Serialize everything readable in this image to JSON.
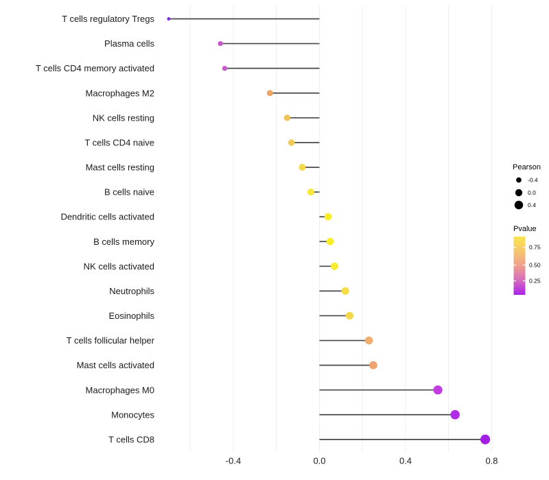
{
  "chart_data": {
    "type": "lollipop",
    "orientation": "horizontal",
    "title": "",
    "xlabel": "",
    "ylabel": "",
    "xlim": [
      -0.78,
      0.85
    ],
    "x_tick_values": [
      -0.4,
      0.0,
      0.4,
      0.8
    ],
    "x_tick_labels": [
      "-0.4",
      "0.0",
      "0.4",
      "0.8"
    ],
    "x_gridline_values": [
      -0.6,
      -0.4,
      -0.2,
      0.0,
      0.2,
      0.4,
      0.6,
      0.8
    ],
    "grid": "vertical-only",
    "categories": [
      "T cells regulatory  Tregs",
      "Plasma cells",
      "T cells CD4 memory activated",
      "Macrophages M2",
      "NK cells resting",
      "T cells CD4 naive",
      "Mast cells resting",
      "B cells naive",
      "Dendritic cells activated",
      "B cells memory",
      "NK cells activated",
      "Neutrophils",
      "Eosinophils",
      "T cells follicular helper",
      "Mast cells activated",
      "Macrophages M0",
      "Monocytes",
      "T cells CD8"
    ],
    "points": [
      {
        "label": "T cells regulatory  Tregs",
        "pearson": -0.7,
        "pvalue_approx": 0.03,
        "color": "#812CE2"
      },
      {
        "label": "Plasma cells",
        "pearson": -0.46,
        "pvalue_approx": 0.28,
        "color": "#C455CB"
      },
      {
        "label": "T cells CD4 memory activated",
        "pearson": -0.44,
        "pvalue_approx": 0.3,
        "color": "#C55CC8"
      },
      {
        "label": "Macrophages M2",
        "pearson": -0.23,
        "pvalue_approx": 0.55,
        "color": "#EDA55F"
      },
      {
        "label": "NK cells resting",
        "pearson": -0.15,
        "pvalue_approx": 0.66,
        "color": "#F0C35A"
      },
      {
        "label": "T cells CD4 naive",
        "pearson": -0.13,
        "pvalue_approx": 0.68,
        "color": "#F0CA5B"
      },
      {
        "label": "Mast cells resting",
        "pearson": -0.08,
        "pvalue_approx": 0.73,
        "color": "#F3D74D"
      },
      {
        "label": "B cells naive",
        "pearson": -0.04,
        "pvalue_approx": 0.82,
        "color": "#F7E93B"
      },
      {
        "label": "Dendritic cells activated",
        "pearson": 0.04,
        "pvalue_approx": 0.88,
        "color": "#F8EE27"
      },
      {
        "label": "B cells memory",
        "pearson": 0.05,
        "pvalue_approx": 0.88,
        "color": "#F9EE26"
      },
      {
        "label": "NK cells activated",
        "pearson": 0.07,
        "pvalue_approx": 0.85,
        "color": "#F6EC30"
      },
      {
        "label": "Neutrophils",
        "pearson": 0.12,
        "pvalue_approx": 0.77,
        "color": "#F5DE43"
      },
      {
        "label": "Eosinophils",
        "pearson": 0.14,
        "pvalue_approx": 0.74,
        "color": "#F3D84C"
      },
      {
        "label": "T cells follicular helper",
        "pearson": 0.23,
        "pvalue_approx": 0.58,
        "color": "#EFAD70"
      },
      {
        "label": "Mast cells activated",
        "pearson": 0.25,
        "pvalue_approx": 0.56,
        "color": "#EEA46E"
      },
      {
        "label": "Macrophages M0",
        "pearson": 0.55,
        "pvalue_approx": 0.22,
        "color": "#C33BE1"
      },
      {
        "label": "Monocytes",
        "pearson": 0.63,
        "pvalue_approx": 0.12,
        "color": "#B02BE5"
      },
      {
        "label": "T cells CD8",
        "pearson": 0.77,
        "pvalue_approx": 0.08,
        "color": "#A21EE5"
      }
    ],
    "legend_position": "right"
  },
  "legend": {
    "size_legend": {
      "title": "Pearson",
      "entries": [
        {
          "label": "-0.4",
          "value": -0.4
        },
        {
          "label": "0.0",
          "value": 0.0
        },
        {
          "label": "0.4",
          "value": 0.4
        }
      ],
      "dot_color": "#000000"
    },
    "color_legend": {
      "title": "Pvalue",
      "tick_labels": [
        "0.75",
        "0.50",
        "0.25"
      ],
      "gradient_top_to_bottom": [
        "#FAE44C",
        "#F5C76D",
        "#EF9F8D",
        "#D76CBF",
        "#A922E8"
      ]
    }
  },
  "colors": {
    "background": "#FFFFFF",
    "gridline": "#EFEFEF",
    "stem": "#474747",
    "axis_text": "#1A1A1A",
    "legend_text": "#000000",
    "colorbar_tick": "#FFFFFF"
  }
}
